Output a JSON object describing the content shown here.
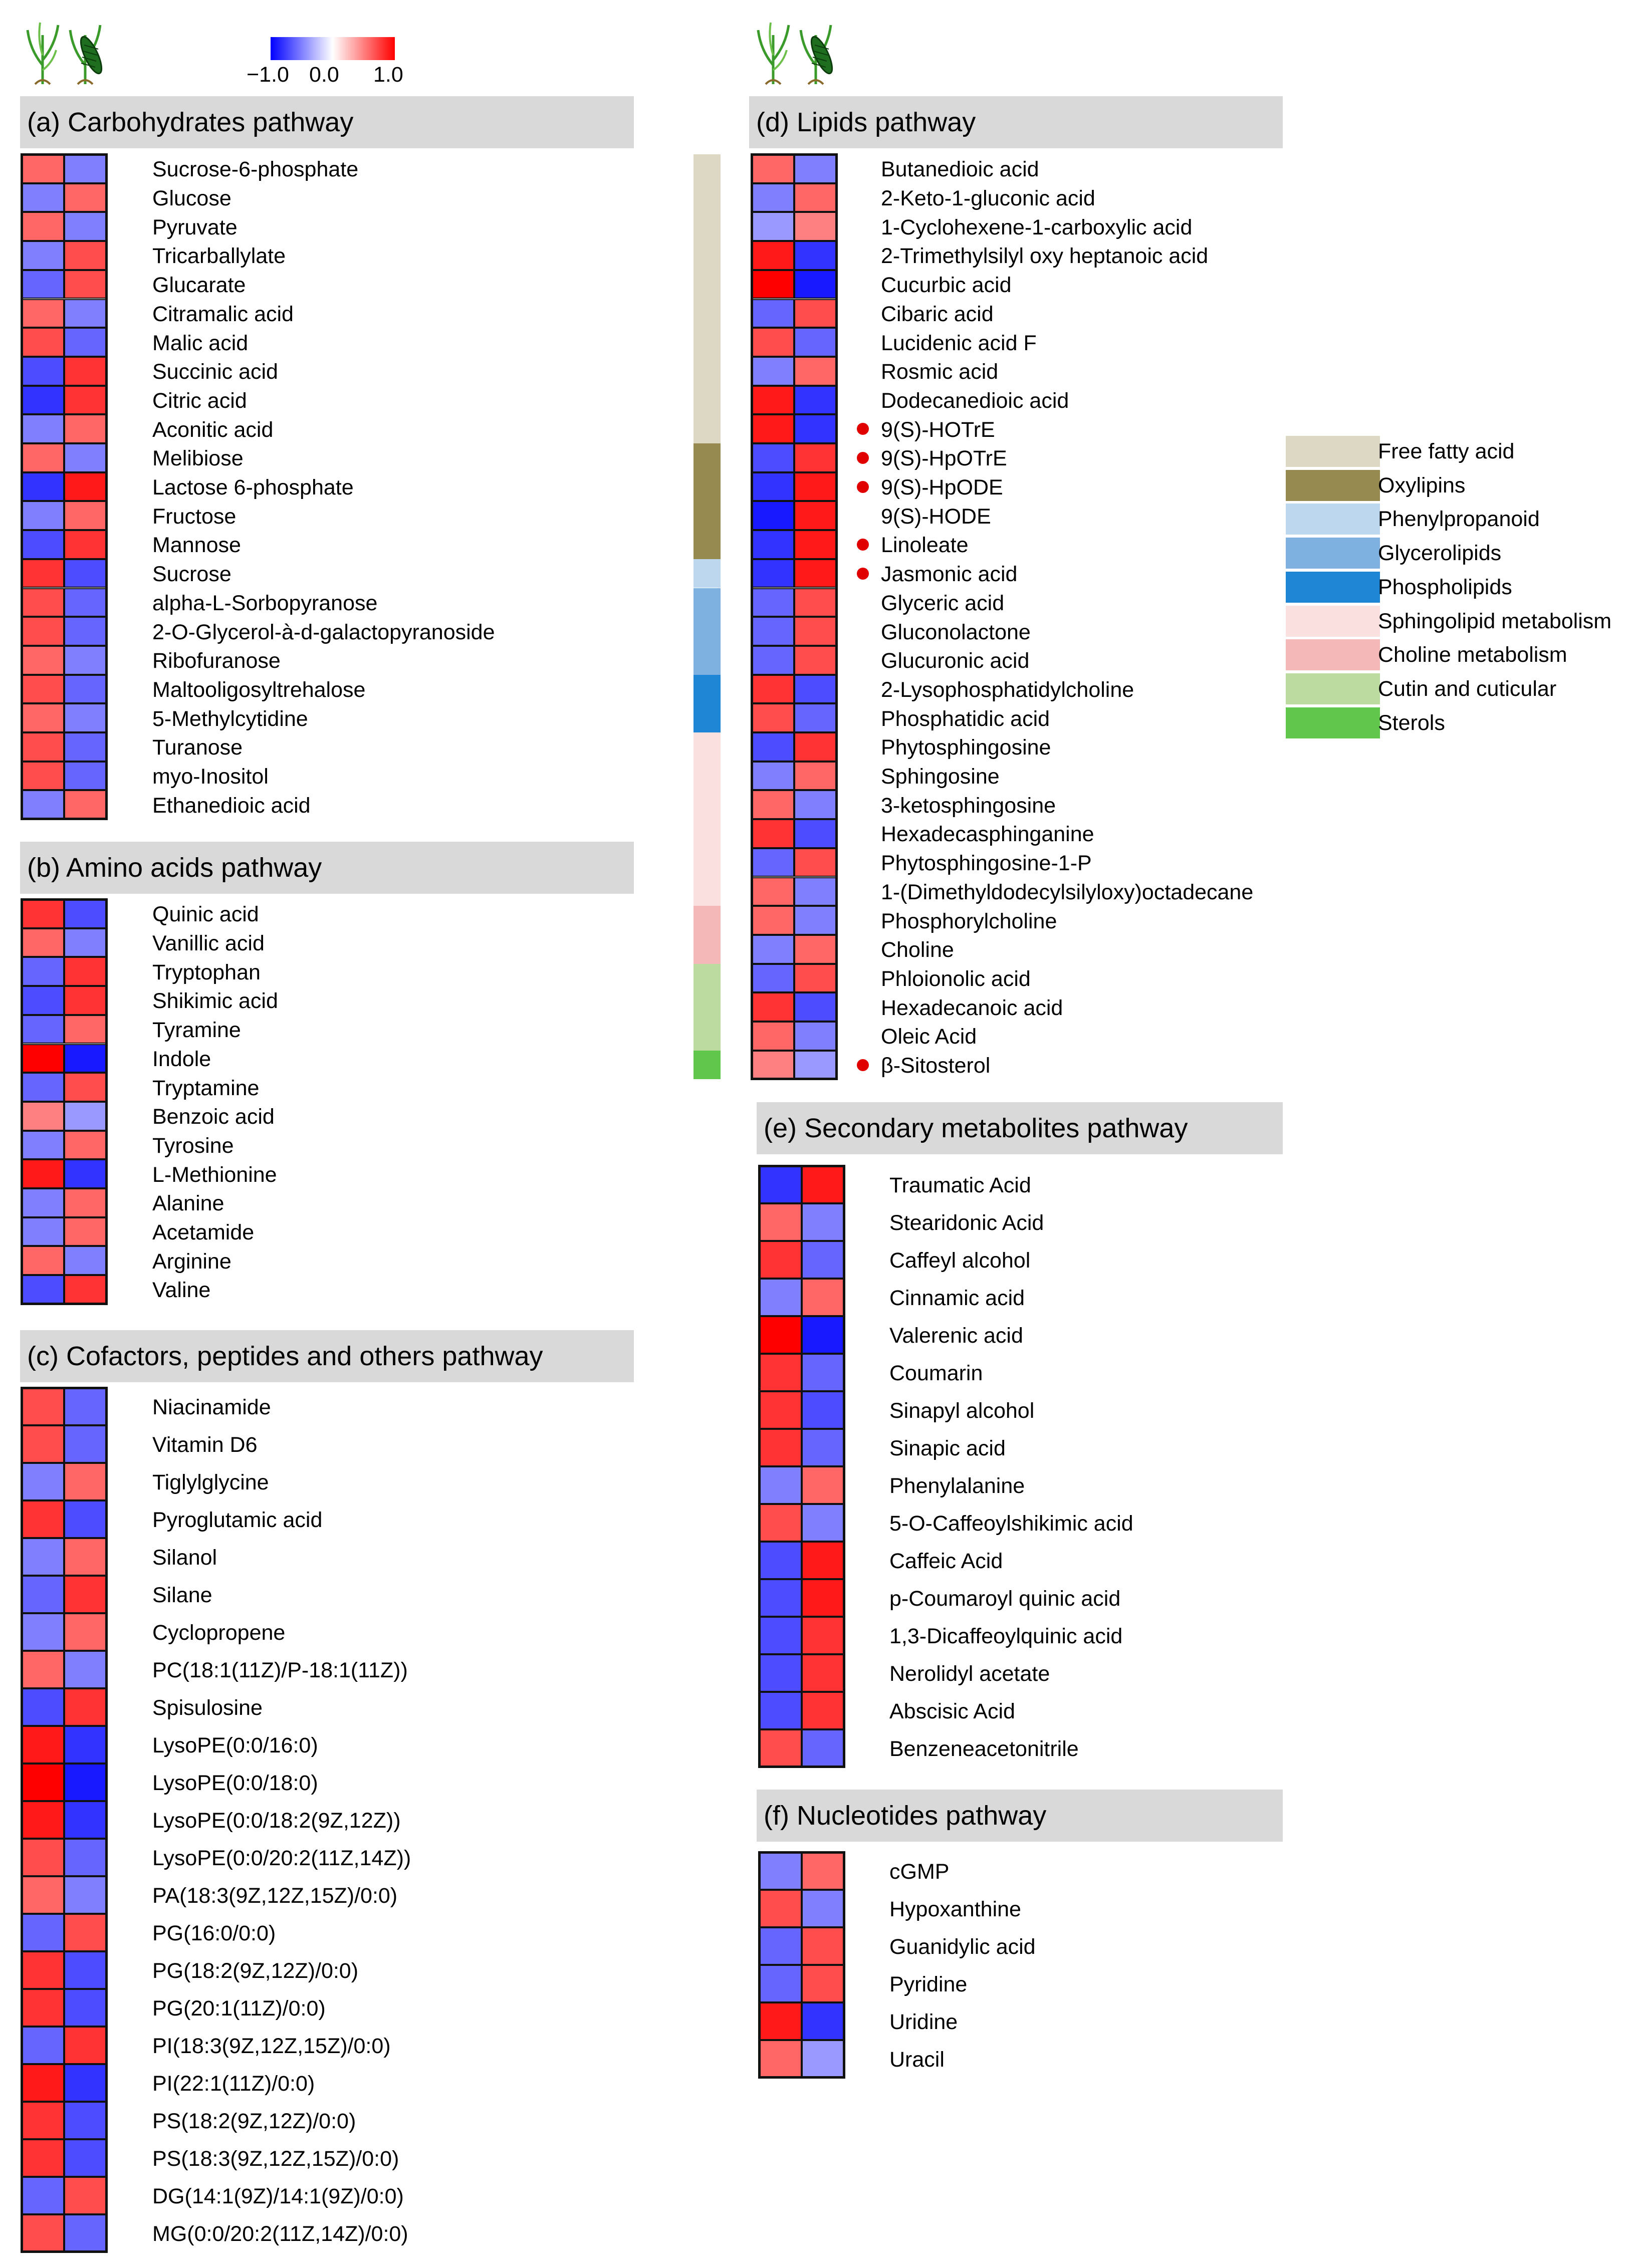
{
  "colorbar": {
    "min_label": "−1.0",
    "mid_label": "0.0",
    "max_label": "1.0",
    "min_color": "#0000ff",
    "mid_color": "#ffffff",
    "max_color": "#ff0000"
  },
  "icons": [
    "plant-icon",
    "insect-on-plant-icon"
  ],
  "chart_data": {
    "type": "heatmap",
    "columns": [
      "plant",
      "insect-infested plant"
    ],
    "value_range": [
      -1.0,
      1.0
    ],
    "panels": [
      {
        "id": "a",
        "title": "(a) Carbohydrates  pathway",
        "rows": [
          {
            "name": "Sucrose-6-phosphate",
            "values": [
              0.6,
              -0.5
            ]
          },
          {
            "name": "Glucose",
            "values": [
              -0.5,
              0.6
            ]
          },
          {
            "name": "Pyruvate",
            "values": [
              0.6,
              -0.5
            ]
          },
          {
            "name": "Tricarballylate",
            "values": [
              -0.5,
              0.7
            ]
          },
          {
            "name": "Glucarate",
            "values": [
              -0.6,
              0.7
            ]
          },
          {
            "name": "Citramalic acid",
            "values": [
              0.6,
              -0.5
            ]
          },
          {
            "name": "Malic acid",
            "values": [
              0.7,
              -0.6
            ]
          },
          {
            "name": "Succinic acid",
            "values": [
              -0.7,
              0.8
            ]
          },
          {
            "name": "Citric acid",
            "values": [
              -0.8,
              0.8
            ]
          },
          {
            "name": "Aconitic acid",
            "values": [
              -0.5,
              0.6
            ]
          },
          {
            "name": "Melibiose",
            "values": [
              0.6,
              -0.5
            ]
          },
          {
            "name": "Lactose 6-phosphate",
            "values": [
              -0.8,
              0.9
            ]
          },
          {
            "name": "Fructose",
            "values": [
              -0.5,
              0.6
            ]
          },
          {
            "name": "Mannose",
            "values": [
              -0.7,
              0.8
            ]
          },
          {
            "name": "Sucrose",
            "values": [
              0.8,
              -0.7
            ]
          },
          {
            "name": "alpha-L-Sorbopyranose",
            "values": [
              0.7,
              -0.6
            ]
          },
          {
            "name": "2-O-Glycerol-à-d-galactopyranoside",
            "values": [
              0.7,
              -0.6
            ]
          },
          {
            "name": "Ribofuranose",
            "values": [
              0.6,
              -0.5
            ]
          },
          {
            "name": "Maltooligosyltrehalose",
            "values": [
              0.7,
              -0.6
            ]
          },
          {
            "name": "5-Methylcytidine",
            "values": [
              0.6,
              -0.5
            ]
          },
          {
            "name": "Turanose",
            "values": [
              0.7,
              -0.6
            ]
          },
          {
            "name": "myo-Inositol",
            "values": [
              0.7,
              -0.6
            ]
          },
          {
            "name": "Ethanedioic acid",
            "values": [
              -0.5,
              0.6
            ]
          }
        ]
      },
      {
        "id": "b",
        "title": "(b) Amino acids pathway",
        "rows": [
          {
            "name": "Quinic acid",
            "values": [
              0.8,
              -0.7
            ]
          },
          {
            "name": "Vanillic acid",
            "values": [
              0.6,
              -0.5
            ]
          },
          {
            "name": "Tryptophan",
            "values": [
              -0.6,
              0.8
            ]
          },
          {
            "name": "Shikimic acid",
            "values": [
              -0.7,
              0.8
            ]
          },
          {
            "name": "Tyramine",
            "values": [
              -0.6,
              0.6
            ]
          },
          {
            "name": "Indole",
            "values": [
              1.0,
              -0.9
            ]
          },
          {
            "name": "Tryptamine",
            "values": [
              -0.6,
              0.7
            ]
          },
          {
            "name": "Benzoic acid",
            "values": [
              0.5,
              -0.4
            ]
          },
          {
            "name": "Tyrosine",
            "values": [
              -0.5,
              0.6
            ]
          },
          {
            "name": "L-Methionine",
            "values": [
              0.9,
              -0.8
            ]
          },
          {
            "name": "Alanine",
            "values": [
              -0.5,
              0.6
            ]
          },
          {
            "name": "Acetamide",
            "values": [
              -0.5,
              0.6
            ]
          },
          {
            "name": "Arginine",
            "values": [
              0.6,
              -0.5
            ]
          },
          {
            "name": "Valine",
            "values": [
              -0.7,
              0.8
            ]
          }
        ]
      },
      {
        "id": "c",
        "title": "(c) Cofactors, peptides and others pathway",
        "rows": [
          {
            "name": "Niacinamide",
            "values": [
              0.7,
              -0.6
            ]
          },
          {
            "name": "Vitamin D6",
            "values": [
              0.7,
              -0.6
            ]
          },
          {
            "name": "Tiglylglycine",
            "values": [
              -0.5,
              0.6
            ]
          },
          {
            "name": "Pyroglutamic acid",
            "values": [
              0.8,
              -0.7
            ]
          },
          {
            "name": "Silanol",
            "values": [
              -0.5,
              0.6
            ]
          },
          {
            "name": "Silane",
            "values": [
              -0.6,
              0.8
            ]
          },
          {
            "name": "Cyclopropene",
            "values": [
              -0.5,
              0.6
            ]
          },
          {
            "name": "PC(18:1(11Z)/P-18:1(11Z))",
            "values": [
              0.6,
              -0.5
            ]
          },
          {
            "name": "Spisulosine",
            "values": [
              -0.7,
              0.8
            ]
          },
          {
            "name": "LysoPE(0:0/16:0)",
            "values": [
              0.9,
              -0.8
            ]
          },
          {
            "name": "LysoPE(0:0/18:0)",
            "values": [
              1.0,
              -0.9
            ]
          },
          {
            "name": "LysoPE(0:0/18:2(9Z,12Z))",
            "values": [
              0.9,
              -0.8
            ]
          },
          {
            "name": "LysoPE(0:0/20:2(11Z,14Z))",
            "values": [
              0.7,
              -0.6
            ]
          },
          {
            "name": "PA(18:3(9Z,12Z,15Z)/0:0)",
            "values": [
              0.6,
              -0.5
            ]
          },
          {
            "name": "PG(16:0/0:0)",
            "values": [
              -0.6,
              0.7
            ]
          },
          {
            "name": "PG(18:2(9Z,12Z)/0:0)",
            "values": [
              0.8,
              -0.7
            ]
          },
          {
            "name": "PG(20:1(11Z)/0:0)",
            "values": [
              0.8,
              -0.7
            ]
          },
          {
            "name": "PI(18:3(9Z,12Z,15Z)/0:0)",
            "values": [
              -0.6,
              0.8
            ]
          },
          {
            "name": "PI(22:1(11Z)/0:0)",
            "values": [
              0.9,
              -0.8
            ]
          },
          {
            "name": "PS(18:2(9Z,12Z)/0:0)",
            "values": [
              0.8,
              -0.7
            ]
          },
          {
            "name": "PS(18:3(9Z,12Z,15Z)/0:0)",
            "values": [
              0.8,
              -0.7
            ]
          },
          {
            "name": "DG(14:1(9Z)/14:1(9Z)/0:0)",
            "values": [
              -0.6,
              0.7
            ]
          },
          {
            "name": "MG(0:0/20:2(11Z,14Z)/0:0)",
            "values": [
              0.7,
              -0.6
            ]
          }
        ]
      },
      {
        "id": "d",
        "title": "(d) Lipids pathway",
        "rows": [
          {
            "name": "Butanedioic acid",
            "values": [
              0.6,
              -0.5
            ],
            "marked": false
          },
          {
            "name": "2-Keto-1-gluconic acid",
            "values": [
              -0.5,
              0.6
            ],
            "marked": false
          },
          {
            "name": "1-Cyclohexene-1-carboxylic acid",
            "values": [
              -0.4,
              0.5
            ],
            "marked": false
          },
          {
            "name": "2-Trimethylsilyl oxy heptanoic acid",
            "values": [
              0.9,
              -0.8
            ],
            "marked": false
          },
          {
            "name": "Cucurbic acid",
            "values": [
              1.0,
              -0.9
            ],
            "marked": false
          },
          {
            "name": "Cibaric acid",
            "values": [
              -0.6,
              0.7
            ],
            "marked": false
          },
          {
            "name": "Lucidenic acid F",
            "values": [
              0.7,
              -0.6
            ],
            "marked": false
          },
          {
            "name": "Rosmic acid",
            "values": [
              -0.5,
              0.6
            ],
            "marked": false
          },
          {
            "name": "Dodecanedioic acid",
            "values": [
              0.9,
              -0.8
            ],
            "marked": false
          },
          {
            "name": "9(S)-HOTrE",
            "values": [
              0.9,
              -0.8
            ],
            "marked": true
          },
          {
            "name": "9(S)-HpOTrE",
            "values": [
              -0.7,
              0.8
            ],
            "marked": true
          },
          {
            "name": "9(S)-HpODE",
            "values": [
              -0.8,
              0.9
            ],
            "marked": true
          },
          {
            "name": "9(S)-HODE",
            "values": [
              -0.9,
              0.9
            ],
            "marked": false
          },
          {
            "name": "Linoleate",
            "values": [
              -0.8,
              0.9
            ],
            "marked": true
          },
          {
            "name": "Jasmonic acid",
            "values": [
              -0.8,
              0.9
            ],
            "marked": true
          },
          {
            "name": "Glyceric acid",
            "values": [
              -0.6,
              0.7
            ],
            "marked": false
          },
          {
            "name": "Gluconolactone",
            "values": [
              -0.6,
              0.7
            ],
            "marked": false
          },
          {
            "name": "Glucuronic acid",
            "values": [
              -0.6,
              0.7
            ],
            "marked": false
          },
          {
            "name": "2-Lysophosphatidylcholine",
            "values": [
              0.8,
              -0.7
            ],
            "marked": false
          },
          {
            "name": "Phosphatidic acid",
            "values": [
              0.7,
              -0.6
            ],
            "marked": false
          },
          {
            "name": "Phytosphingosine",
            "values": [
              -0.7,
              0.8
            ],
            "marked": false
          },
          {
            "name": "Sphingosine",
            "values": [
              -0.5,
              0.6
            ],
            "marked": false
          },
          {
            "name": "3-ketosphingosine",
            "values": [
              0.6,
              -0.5
            ],
            "marked": false
          },
          {
            "name": "Hexadecasphinganine",
            "values": [
              0.8,
              -0.7
            ],
            "marked": false
          },
          {
            "name": "Phytosphingosine-1-P",
            "values": [
              -0.6,
              0.7
            ],
            "marked": false
          },
          {
            "name": "1-(Dimethyldodecylsilyloxy)octadecane",
            "values": [
              0.6,
              -0.5
            ],
            "marked": false
          },
          {
            "name": "Phosphorylcholine",
            "values": [
              0.6,
              -0.5
            ],
            "marked": false
          },
          {
            "name": "Choline",
            "values": [
              -0.5,
              0.6
            ],
            "marked": false
          },
          {
            "name": "Phloionolic acid",
            "values": [
              -0.6,
              0.7
            ],
            "marked": false
          },
          {
            "name": "Hexadecanoic acid",
            "values": [
              0.8,
              -0.7
            ],
            "marked": false
          },
          {
            "name": "Oleic Acid",
            "values": [
              0.6,
              -0.5
            ],
            "marked": false
          },
          {
            "name": "β-Sitosterol",
            "values": [
              0.5,
              -0.4
            ],
            "marked": true
          }
        ]
      },
      {
        "id": "e",
        "title": "(e) Secondary metabolites pathway",
        "rows": [
          {
            "name": "Traumatic Acid",
            "values": [
              -0.8,
              0.9
            ]
          },
          {
            "name": "Stearidonic Acid",
            "values": [
              0.6,
              -0.5
            ]
          },
          {
            "name": "Caffeyl alcohol",
            "values": [
              0.8,
              -0.6
            ]
          },
          {
            "name": "Cinnamic acid",
            "values": [
              -0.5,
              0.6
            ]
          },
          {
            "name": "Valerenic acid",
            "values": [
              1.0,
              -0.9
            ]
          },
          {
            "name": "Coumarin",
            "values": [
              0.8,
              -0.6
            ]
          },
          {
            "name": "Sinapyl alcohol",
            "values": [
              0.8,
              -0.7
            ]
          },
          {
            "name": "Sinapic acid",
            "values": [
              0.8,
              -0.6
            ]
          },
          {
            "name": "Phenylalanine",
            "values": [
              -0.5,
              0.6
            ]
          },
          {
            "name": "5-O-Caffeoylshikimic acid",
            "values": [
              0.7,
              -0.5
            ]
          },
          {
            "name": "Caffeic Acid",
            "values": [
              -0.7,
              0.9
            ]
          },
          {
            "name": "p-Coumaroyl quinic acid",
            "values": [
              -0.7,
              0.9
            ]
          },
          {
            "name": "1,3-Dicaffeoylquinic acid",
            "values": [
              -0.7,
              0.8
            ]
          },
          {
            "name": "Nerolidyl acetate",
            "values": [
              -0.7,
              0.8
            ]
          },
          {
            "name": "Abscisic Acid",
            "values": [
              -0.7,
              0.8
            ]
          },
          {
            "name": "Benzeneacetonitrile",
            "values": [
              0.7,
              -0.6
            ]
          }
        ]
      },
      {
        "id": "f",
        "title": "(f) Nucleotides pathway",
        "rows": [
          {
            "name": "cGMP",
            "values": [
              -0.5,
              0.6
            ]
          },
          {
            "name": "Hypoxanthine",
            "values": [
              0.7,
              -0.5
            ]
          },
          {
            "name": "Guanidylic acid",
            "values": [
              -0.6,
              0.7
            ]
          },
          {
            "name": "Pyridine",
            "values": [
              -0.6,
              0.7
            ]
          },
          {
            "name": "Uridine",
            "values": [
              0.9,
              -0.8
            ]
          },
          {
            "name": "Uracil",
            "values": [
              0.6,
              -0.4
            ]
          }
        ]
      }
    ],
    "category_legend": [
      {
        "label": "Free fatty acid",
        "color": "#ddd8c4"
      },
      {
        "label": "Oxylipins",
        "color": "#968a50"
      },
      {
        "label": "Phenylpropanoid",
        "color": "#bdd7ee"
      },
      {
        "label": "Glycerolipids",
        "color": "#7eb1e0"
      },
      {
        "label": "Phospholipids",
        "color": "#1f86d6"
      },
      {
        "label": "Sphingolipid metabolism",
        "color": "#fbe0e0"
      },
      {
        "label": "Choline metabolism",
        "color": "#f4b8b8"
      },
      {
        "label": "Cutin and cuticular",
        "color": "#bcdba0"
      },
      {
        "label": "Sterols",
        "color": "#60c74c"
      }
    ],
    "category_bar": [
      {
        "category": "Free fatty acid",
        "rows": 10
      },
      {
        "category": "Oxylipins",
        "rows": 4
      },
      {
        "category": "Phenylpropanoid",
        "rows": 1
      },
      {
        "category": "Glycerolipids",
        "rows": 3
      },
      {
        "category": "Phospholipids",
        "rows": 2
      },
      {
        "category": "Sphingolipid metabolism",
        "rows": 6
      },
      {
        "category": "Choline metabolism",
        "rows": 2
      },
      {
        "category": "Cutin and cuticular",
        "rows": 3
      },
      {
        "category": "Sterols",
        "rows": 1
      }
    ]
  }
}
